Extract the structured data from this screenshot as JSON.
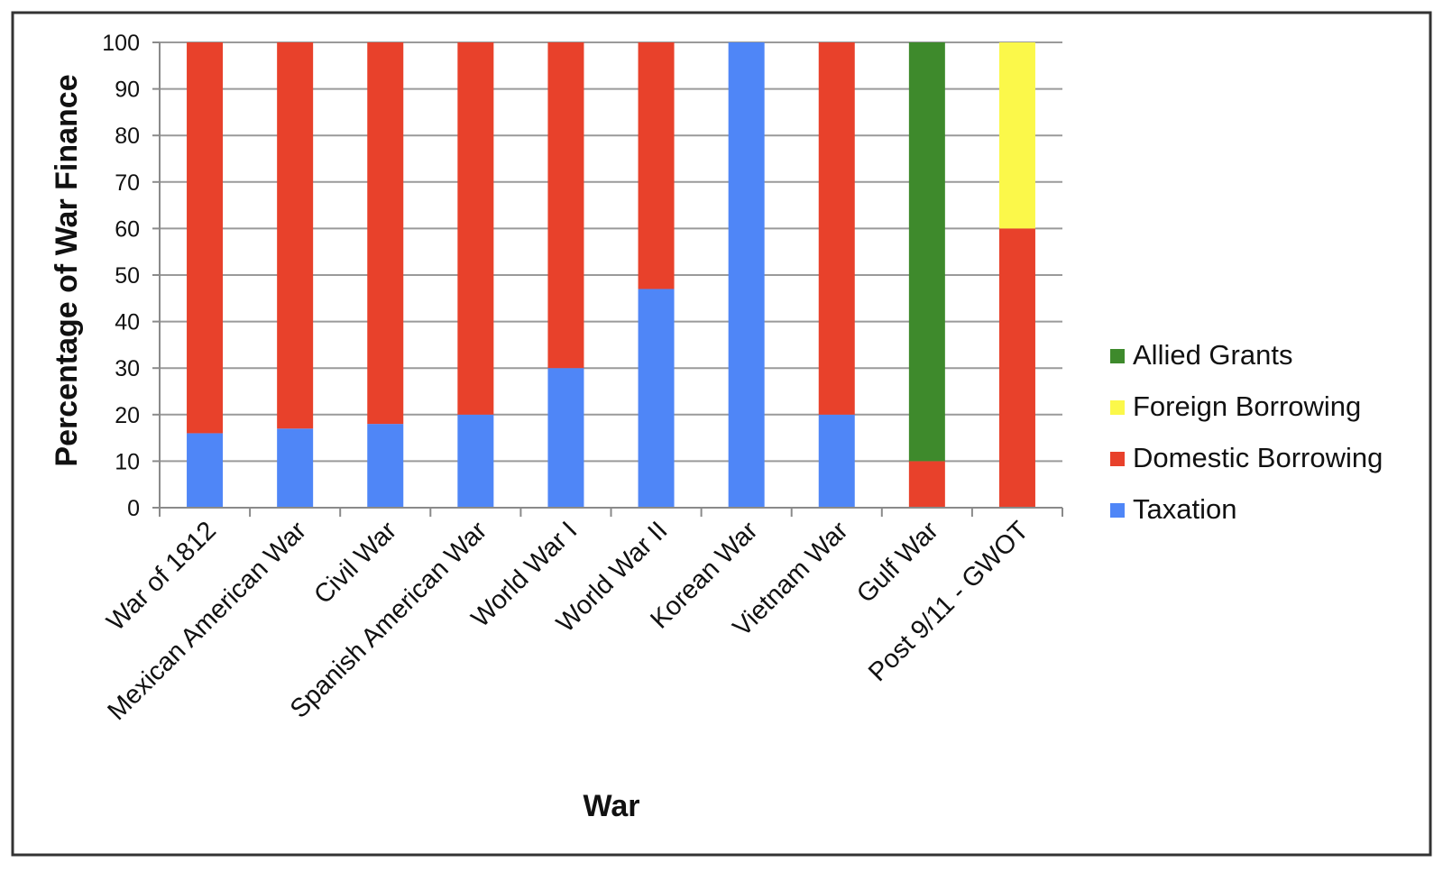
{
  "chart_data": {
    "type": "bar",
    "stacked": true,
    "title": "",
    "xlabel": "War",
    "ylabel": "Percentage of War Finance",
    "ylim": [
      0,
      100
    ],
    "yticks": [
      "0",
      "10",
      "20",
      "30",
      "40",
      "50",
      "60",
      "70",
      "80",
      "90",
      "100"
    ],
    "grid": true,
    "legend_position": "right",
    "categories": [
      "War of 1812",
      "Mexican American War",
      "Civil War",
      "Spanish American War",
      "World War I",
      "World War II",
      "Korean War",
      "Vietnam War",
      "Gulf War",
      "Post 9/11 - GWOT"
    ],
    "series": [
      {
        "name": "Taxation",
        "color": "#4f86f7",
        "values": [
          16,
          17,
          18,
          20,
          30,
          47,
          100,
          20,
          0,
          0
        ]
      },
      {
        "name": "Domestic Borrowing",
        "color": "#e8412b",
        "values": [
          84,
          83,
          82,
          80,
          70,
          53,
          0,
          80,
          10,
          60
        ]
      },
      {
        "name": "Foreign Borrowing",
        "color": "#fbf84a",
        "values": [
          0,
          0,
          0,
          0,
          0,
          0,
          0,
          0,
          0,
          40
        ]
      },
      {
        "name": "Allied Grants",
        "color": "#3e8a2c",
        "values": [
          0,
          0,
          0,
          0,
          0,
          0,
          0,
          0,
          90,
          0
        ]
      }
    ],
    "legend_order": [
      "Allied Grants",
      "Foreign Borrowing",
      "Domestic Borrowing",
      "Taxation"
    ]
  }
}
